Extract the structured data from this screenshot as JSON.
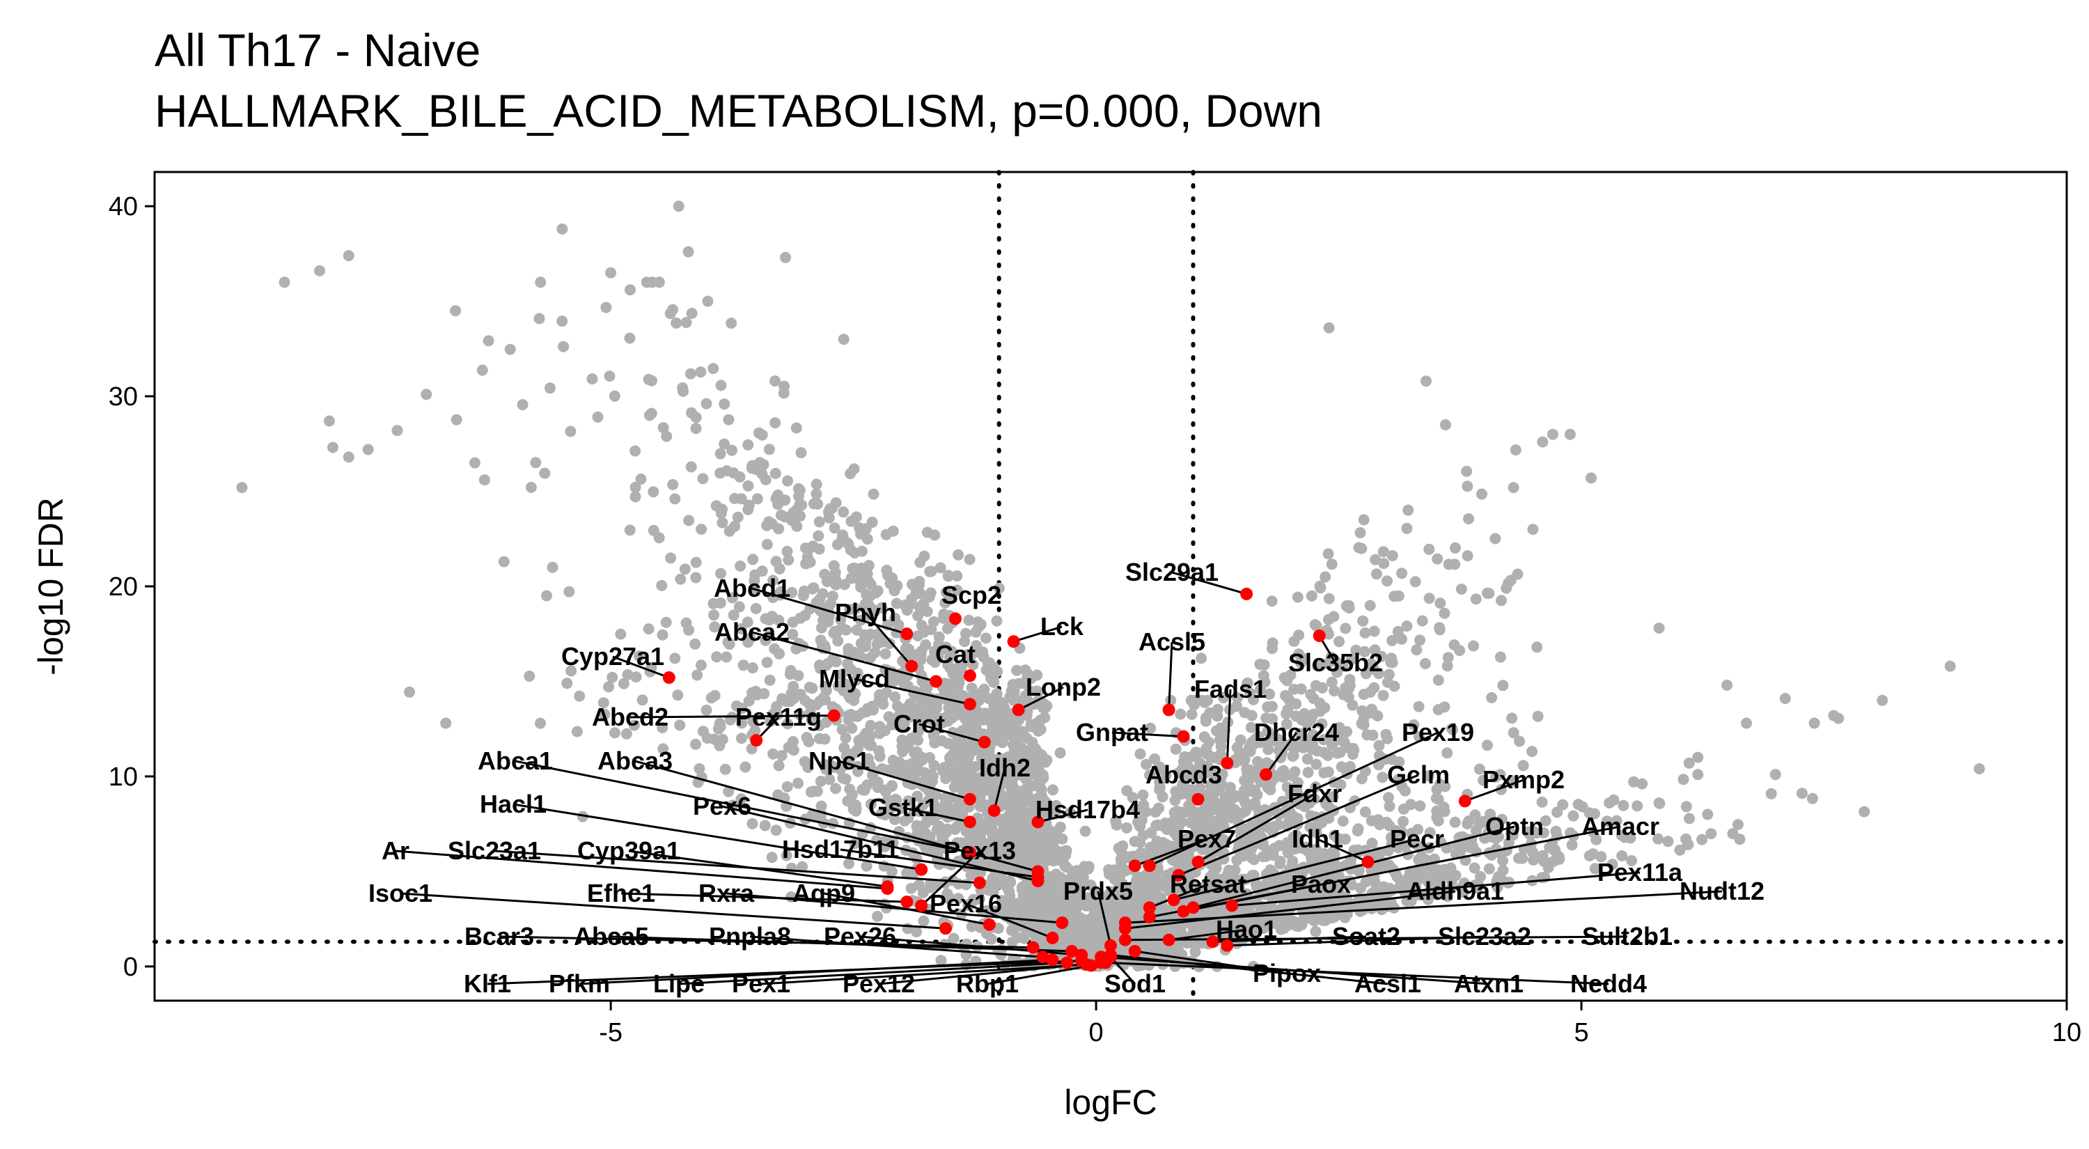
{
  "chart_data": {
    "type": "scatter",
    "title": "All Th17 - Naive",
    "subtitle": "HALLMARK_BILE_ACID_METABOLISM, p=0.000, Down",
    "xlabel": "logFC",
    "ylabel": "-log10 FDR",
    "xlim": [
      -9.7,
      10.0
    ],
    "ylim": [
      -1.8,
      41.8
    ],
    "xticks": [
      -5,
      0,
      5,
      10
    ],
    "yticks": [
      0,
      10,
      20,
      30,
      40
    ],
    "grid": false,
    "legend": "none",
    "colors": {
      "background_points": "#b0b0b0",
      "highlight_points": "#ff0000",
      "text": "#000000"
    },
    "thresholds": {
      "logFC": [
        -1,
        1
      ],
      "neg_log10_fdr": 1.3
    },
    "background_outliers": [
      [
        -8.8,
        25.2
      ],
      [
        -8.0,
        36.6
      ],
      [
        -7.7,
        37.4
      ],
      [
        -7.9,
        28.7
      ],
      [
        -7.7,
        26.8
      ],
      [
        -7.5,
        27.2
      ],
      [
        -7.2,
        28.2
      ],
      [
        -6.9,
        30.1
      ],
      [
        -6.7,
        12.8
      ],
      [
        -6.6,
        34.5
      ],
      [
        -6.4,
        26.5
      ],
      [
        -6.3,
        25.6
      ],
      [
        -6.1,
        21.3
      ],
      [
        -5.5,
        38.8
      ],
      [
        -5.0,
        36.5
      ],
      [
        -4.8,
        35.6
      ],
      [
        -4.5,
        36.0
      ],
      [
        -4.2,
        37.6
      ],
      [
        -4.0,
        35.0
      ],
      [
        -4.3,
        40.0
      ],
      [
        -3.2,
        37.3
      ],
      [
        -2.6,
        33.0
      ],
      [
        -4.6,
        29.0
      ],
      [
        -5.6,
        21.0
      ],
      [
        2.4,
        33.6
      ],
      [
        3.4,
        30.8
      ],
      [
        3.6,
        28.5
      ],
      [
        4.6,
        27.6
      ],
      [
        4.5,
        23.0
      ],
      [
        5.1,
        25.7
      ],
      [
        4.3,
        25.2
      ],
      [
        5.8,
        17.8
      ],
      [
        6.5,
        14.8
      ],
      [
        7.1,
        14.1
      ],
      [
        7.6,
        13.2
      ],
      [
        8.1,
        14.0
      ],
      [
        8.8,
        15.8
      ],
      [
        9.1,
        10.4
      ],
      [
        7.0,
        10.1
      ],
      [
        6.2,
        10.1
      ],
      [
        6.3,
        8.0
      ],
      [
        6.2,
        11.0
      ],
      [
        5.8,
        8.6
      ],
      [
        6.7,
        12.8
      ],
      [
        7.4,
        12.8
      ]
    ],
    "highlighted_genes": [
      {
        "label": "Abcd1",
        "x": -1.95,
        "y": 17.5
      },
      {
        "label": "Phyh",
        "x": -1.9,
        "y": 15.8
      },
      {
        "label": "Scp2",
        "x": -1.45,
        "y": 18.3
      },
      {
        "label": "Lck",
        "x": -0.85,
        "y": 17.1
      },
      {
        "label": "Abca2",
        "x": -1.65,
        "y": 15.0
      },
      {
        "label": "Cat",
        "x": -1.3,
        "y": 15.3
      },
      {
        "label": "Cyp27a1",
        "x": -4.4,
        "y": 15.2
      },
      {
        "label": "Mlycd",
        "x": -1.3,
        "y": 13.8
      },
      {
        "label": "Lonp2",
        "x": -0.8,
        "y": 13.5
      },
      {
        "label": "Crot",
        "x": -1.15,
        "y": 11.8
      },
      {
        "label": "Abcd2",
        "x": -2.7,
        "y": 13.2
      },
      {
        "label": "Pex11g",
        "x": -3.5,
        "y": 11.9
      },
      {
        "label": "Npc1",
        "x": -1.3,
        "y": 8.8
      },
      {
        "label": "Idh2",
        "x": -1.05,
        "y": 8.2
      },
      {
        "label": "Gstk1",
        "x": -1.3,
        "y": 7.6
      },
      {
        "label": "Hsd17b4",
        "x": -0.6,
        "y": 7.6
      },
      {
        "label": "Abca1",
        "x": -1.3,
        "y": 6.0
      },
      {
        "label": "Abca3",
        "x": -0.6,
        "y": 5.0
      },
      {
        "label": "Hacl1",
        "x": -1.8,
        "y": 5.1
      },
      {
        "label": "Pex6",
        "x": -0.6,
        "y": 4.5
      },
      {
        "label": "Ar",
        "x": -2.15,
        "y": 4.1
      },
      {
        "label": "Slc23a1",
        "x": -1.2,
        "y": 4.4
      },
      {
        "label": "Cyp39a1",
        "x": -2.15,
        "y": 4.2
      },
      {
        "label": "Hsd17b11",
        "x": -0.6,
        "y": 4.7
      },
      {
        "label": "Pex13",
        "x": -1.8,
        "y": 3.2
      },
      {
        "label": "Isoc1",
        "x": -1.55,
        "y": 2.0
      },
      {
        "label": "Efhc1",
        "x": -1.95,
        "y": 3.4
      },
      {
        "label": "Rxra",
        "x": -0.35,
        "y": 2.3
      },
      {
        "label": "Aqp9",
        "x": -1.1,
        "y": 2.2
      },
      {
        "label": "Pex16",
        "x": -0.45,
        "y": 1.5
      },
      {
        "label": "Prdx5",
        "x": 0.15,
        "y": 1.1
      },
      {
        "label": "Bcar3",
        "x": -0.65,
        "y": 1.0
      },
      {
        "label": "Abca5",
        "x": -0.25,
        "y": 0.8
      },
      {
        "label": "Pnpla8",
        "x": -0.55,
        "y": 0.5
      },
      {
        "label": "Pex26",
        "x": -0.15,
        "y": 0.6
      },
      {
        "label": "Klf1",
        "x": -0.15,
        "y": 0.3
      },
      {
        "label": "Pfkm",
        "x": -0.45,
        "y": 0.35
      },
      {
        "label": "Lipe",
        "x": -0.3,
        "y": 0.2
      },
      {
        "label": "Pex1",
        "x": -0.1,
        "y": 0.1
      },
      {
        "label": "Pex12",
        "x": 0.05,
        "y": 0.2
      },
      {
        "label": "Rbp1",
        "x": -0.05,
        "y": 0.05
      },
      {
        "label": "Sod1",
        "x": 0.15,
        "y": 0.5
      },
      {
        "label": "Slc29a1",
        "x": 1.55,
        "y": 19.6
      },
      {
        "label": "Acsl5",
        "x": 0.75,
        "y": 13.5
      },
      {
        "label": "Slc35b2",
        "x": 2.3,
        "y": 17.4
      },
      {
        "label": "Fads1",
        "x": 1.35,
        "y": 10.7
      },
      {
        "label": "Gnpat",
        "x": 0.9,
        "y": 12.1
      },
      {
        "label": "Dhcr24",
        "x": 1.75,
        "y": 10.1
      },
      {
        "label": "Pex19",
        "x": 0.55,
        "y": 5.3
      },
      {
        "label": "Abcd3",
        "x": 1.05,
        "y": 8.8
      },
      {
        "label": "Gclm",
        "x": 0.85,
        "y": 4.8
      },
      {
        "label": "Fdxr",
        "x": 1.05,
        "y": 5.5
      },
      {
        "label": "Pxmp2",
        "x": 3.8,
        "y": 8.7
      },
      {
        "label": "Pex7",
        "x": 0.4,
        "y": 5.3
      },
      {
        "label": "Idh1",
        "x": 2.8,
        "y": 5.5
      },
      {
        "label": "Pecr",
        "x": 0.8,
        "y": 3.5
      },
      {
        "label": "Optn",
        "x": 1.0,
        "y": 3.1
      },
      {
        "label": "Amacr",
        "x": 0.9,
        "y": 2.9
      },
      {
        "label": "Retsat",
        "x": 0.55,
        "y": 3.1
      },
      {
        "label": "Paox",
        "x": 0.55,
        "y": 2.6
      },
      {
        "label": "Aldh9a1",
        "x": 0.3,
        "y": 2.0
      },
      {
        "label": "Pex11a",
        "x": 1.4,
        "y": 3.2
      },
      {
        "label": "Nudt12",
        "x": 0.3,
        "y": 2.3
      },
      {
        "label": "Hao1",
        "x": 0.75,
        "y": 1.4
      },
      {
        "label": "Soat2",
        "x": 1.2,
        "y": 1.3
      },
      {
        "label": "Slc23a2",
        "x": 1.35,
        "y": 1.1
      },
      {
        "label": "Sult2b1",
        "x": 0.3,
        "y": 1.4
      },
      {
        "label": "Pipox",
        "x": 0.4,
        "y": 0.8
      },
      {
        "label": "Acsl1",
        "x": 0.15,
        "y": 0.6
      },
      {
        "label": "Atxn1",
        "x": 0.05,
        "y": 0.5
      },
      {
        "label": "Nedd4",
        "x": 0.1,
        "y": 0.2
      }
    ]
  }
}
